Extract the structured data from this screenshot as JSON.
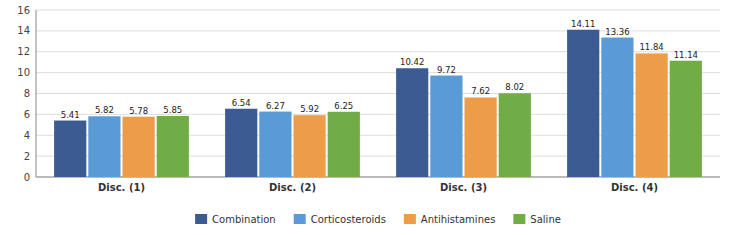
{
  "chart_data": {
    "type": "bar",
    "categories": [
      "Disc. (1)",
      "Disc. (2)",
      "Disc. (3)",
      "Disc. (4)"
    ],
    "series": [
      {
        "name": "Combination",
        "color": "#3b5b92",
        "values": [
          5.41,
          6.54,
          10.42,
          14.11
        ]
      },
      {
        "name": "Corticosteroids",
        "color": "#5b9bd5",
        "values": [
          5.82,
          6.27,
          9.72,
          13.36
        ]
      },
      {
        "name": "Antihistamines",
        "color": "#ed9c4a",
        "values": [
          5.78,
          5.92,
          7.62,
          11.84
        ]
      },
      {
        "name": "Saline",
        "color": "#70ad47",
        "values": [
          5.85,
          6.25,
          8.02,
          11.14
        ]
      }
    ],
    "ylim": [
      0,
      16
    ],
    "yticks": [
      0,
      2,
      4,
      6,
      8,
      10,
      12,
      14,
      16
    ],
    "grid": true,
    "legend": "bottom",
    "data_labels": true
  }
}
